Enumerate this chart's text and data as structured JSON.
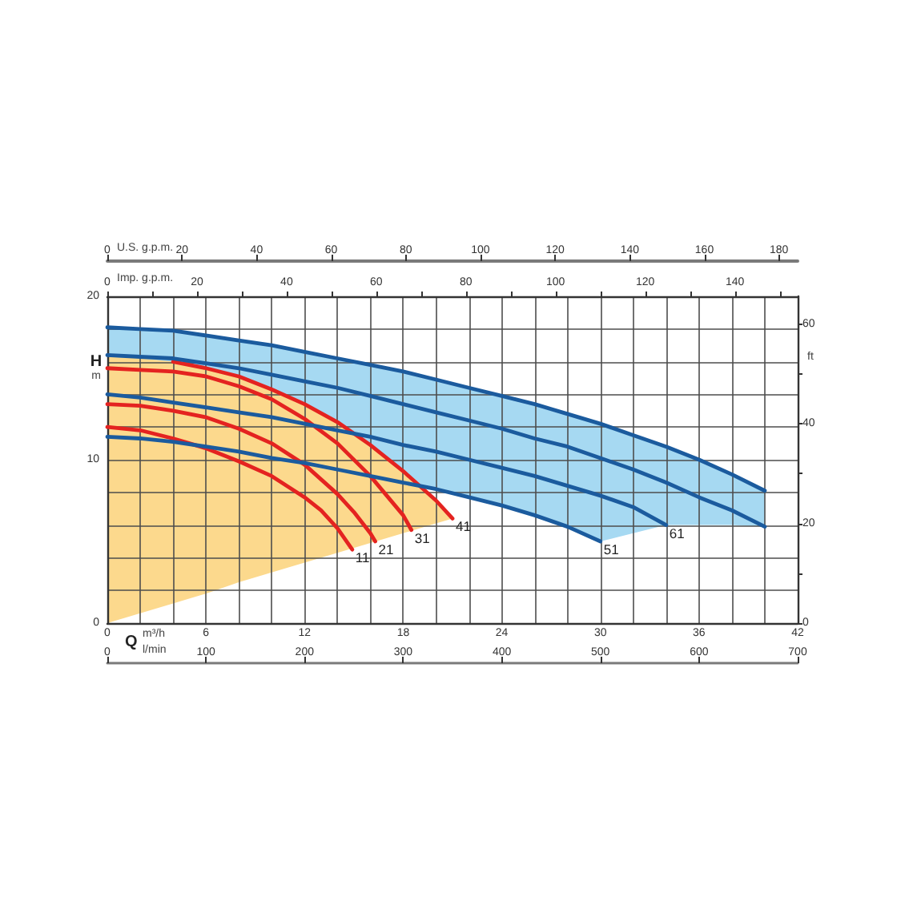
{
  "chart_data": [
    {
      "type": "line",
      "xlabel": "m³/h",
      "x2label": "Imp. g.p.m.",
      "ylabel": "m",
      "annotations": [
        "Q",
        "H"
      ],
      "xlim": [
        0,
        42
      ],
      "xticks": [
        0,
        {
          "value": 2,
          "label": null
        },
        {
          "value": 4,
          "label": null
        },
        6,
        {
          "value": 8,
          "label": null
        },
        {
          "value": 10,
          "label": null
        },
        12,
        {
          "value": 14,
          "label": null
        },
        {
          "value": 16,
          "label": null
        },
        18,
        {
          "value": 20,
          "label": null
        },
        {
          "value": 22,
          "label": null
        },
        24,
        {
          "value": 26,
          "label": null
        },
        {
          "value": 28,
          "label": null
        },
        30,
        {
          "value": 32,
          "label": null
        },
        {
          "value": 34,
          "label": null
        },
        36,
        {
          "value": 38,
          "label": null
        },
        {
          "value": 40,
          "label": null
        },
        42
      ],
      "x2lim": [
        0,
        154
      ],
      "x2ticks": [
        0,
        {
          "value": 10,
          "label": null
        },
        20,
        {
          "value": 30,
          "label": null
        },
        40,
        {
          "value": 50,
          "label": null
        },
        60,
        {
          "value": 70,
          "label": null
        },
        80,
        {
          "value": 90,
          "label": null
        },
        100,
        {
          "value": 110,
          "label": null
        },
        120,
        {
          "value": 130,
          "label": null
        },
        140,
        {
          "value": 150,
          "label": null
        }
      ],
      "ylim": [
        0,
        20
      ],
      "yticks": [
        0,
        {
          "value": 2,
          "label": null
        },
        {
          "value": 4,
          "label": null
        },
        {
          "value": 6,
          "label": null
        },
        {
          "value": 8,
          "label": null
        },
        10,
        {
          "value": 12,
          "label": null
        },
        {
          "value": 14,
          "label": null
        },
        {
          "value": 16,
          "label": null
        },
        {
          "value": 18,
          "label": null
        },
        20
      ],
      "grid": true,
      "series": [
        {
          "name": "11",
          "color": "#e42320",
          "x": [
            0,
            2,
            4,
            6,
            8,
            10,
            12,
            13,
            14,
            14.9
          ],
          "values": [
            12.0,
            11.8,
            11.3,
            10.7,
            9.9,
            9.0,
            7.7,
            6.9,
            5.8,
            4.5
          ]
        },
        {
          "name": "21",
          "color": "#e42320",
          "x": [
            0,
            2,
            4,
            6,
            8,
            10,
            12,
            14,
            15,
            16,
            16.3
          ],
          "values": [
            13.4,
            13.3,
            13.0,
            12.6,
            11.9,
            11.0,
            9.7,
            7.9,
            6.8,
            5.5,
            5.0
          ]
        },
        {
          "name": "31",
          "color": "#e42320",
          "x": [
            0,
            2,
            4,
            6,
            8,
            10,
            12,
            14,
            16,
            18,
            18.5
          ],
          "values": [
            15.6,
            15.5,
            15.4,
            15.1,
            14.5,
            13.7,
            12.5,
            11.0,
            9.0,
            6.6,
            5.7
          ]
        },
        {
          "name": "41",
          "color": "#e42320",
          "x": [
            4,
            6,
            8,
            10,
            12,
            14,
            16,
            18,
            20,
            21
          ],
          "values": [
            16.0,
            15.6,
            15.1,
            14.3,
            13.4,
            12.3,
            10.9,
            9.3,
            7.5,
            6.4
          ]
        },
        {
          "name": "51",
          "color": "#1b5b9e",
          "x": [
            0,
            2,
            4,
            6,
            8,
            10,
            12,
            14,
            16,
            18,
            20,
            22,
            24,
            26,
            28,
            30
          ],
          "values": [
            11.4,
            11.3,
            11.1,
            10.8,
            10.5,
            10.1,
            9.8,
            9.4,
            9.0,
            8.6,
            8.2,
            7.7,
            7.2,
            6.6,
            5.9,
            5.0
          ]
        },
        {
          "name": "61",
          "color": "#1b5b9e",
          "x": [
            0,
            2,
            4,
            6,
            8,
            10,
            12,
            14,
            16,
            18,
            20,
            22,
            24,
            26,
            28,
            30,
            32,
            34
          ],
          "values": [
            14.0,
            13.8,
            13.5,
            13.2,
            12.9,
            12.6,
            12.2,
            11.8,
            11.4,
            10.9,
            10.5,
            10.0,
            9.5,
            9.0,
            8.4,
            7.8,
            7.1,
            6.0
          ]
        },
        {
          "color": "#1b5b9e",
          "x": [
            0,
            2,
            4,
            6,
            8,
            10,
            12,
            14,
            16,
            18,
            20,
            22,
            24,
            26,
            28,
            30,
            32,
            34,
            36,
            38,
            40
          ],
          "values": [
            16.4,
            16.3,
            16.2,
            15.9,
            15.6,
            15.2,
            14.8,
            14.4,
            13.9,
            13.4,
            12.9,
            12.4,
            11.9,
            11.3,
            10.8,
            10.1,
            9.4,
            8.6,
            7.7,
            6.9,
            5.9
          ]
        },
        {
          "color": "#1b5b9e",
          "x": [
            0,
            2,
            4,
            6,
            8,
            10,
            12,
            14,
            16,
            18,
            20,
            22,
            24,
            26,
            28,
            30,
            32,
            34,
            36,
            38,
            40
          ],
          "values": [
            18.1,
            18.0,
            17.9,
            17.6,
            17.3,
            17.0,
            16.6,
            16.2,
            15.8,
            15.4,
            14.9,
            14.4,
            13.9,
            13.4,
            12.8,
            12.2,
            11.5,
            10.8,
            10.0,
            9.1,
            8.1
          ]
        },
        {
          "type": "area",
          "color": "#a6d9f2",
          "x": [
            0,
            2,
            4,
            6,
            8,
            10,
            12,
            14,
            16,
            18,
            20,
            22,
            24,
            26,
            28,
            30,
            32,
            34,
            36,
            38,
            40
          ],
          "values": [
            null,
            null,
            null,
            null,
            null,
            null,
            null,
            null,
            null,
            null,
            null,
            null,
            null,
            null,
            null,
            null,
            null,
            null,
            null,
            null,
            null
          ],
          "upper": [
            18.1,
            18.0,
            17.9,
            17.6,
            17.3,
            17.0,
            16.6,
            16.2,
            15.8,
            15.4,
            14.9,
            14.4,
            13.9,
            13.4,
            12.8,
            12.2,
            11.5,
            10.8,
            10.0,
            9.1,
            8.1
          ],
          "lower": [
            11.4,
            11.3,
            11.1,
            10.8,
            10.5,
            10.1,
            9.8,
            9.4,
            9.0,
            8.6,
            8.2,
            7.7,
            7.2,
            6.6,
            5.9,
            5.0,
            5.5,
            6.0,
            6.0,
            6.0,
            5.9
          ]
        },
        {
          "type": "area",
          "color": "#fcd98d",
          "x": [
            0,
            2,
            4,
            6,
            8,
            10,
            12,
            14,
            16,
            18,
            20,
            21
          ],
          "values": [
            null,
            null,
            null,
            null,
            null,
            null,
            null,
            null,
            null,
            null,
            null,
            null
          ],
          "upper": [
            16.3,
            16.2,
            16.0,
            15.6,
            15.1,
            14.3,
            13.4,
            12.3,
            10.9,
            9.3,
            7.5,
            6.4
          ],
          "lower": [
            0,
            0.6,
            1.2,
            1.8,
            2.5,
            3.1,
            3.7,
            4.3,
            4.9,
            5.5,
            6.1,
            6.4
          ]
        }
      ]
    },
    {
      "type": "line",
      "xlabel": "l/min",
      "x2label": "U.S. g.p.m.",
      "ylabel": "ft",
      "xlim": [
        0,
        700
      ],
      "xticks": [
        0,
        100,
        200,
        300,
        400,
        500,
        600,
        700
      ],
      "x2lim": [
        0,
        185
      ],
      "x2ticks": [
        0,
        20,
        40,
        60,
        80,
        100,
        120,
        140,
        160,
        180
      ],
      "ylim": [
        0,
        65.6
      ],
      "yticks": [
        0,
        {
          "value": 10,
          "label": null
        },
        20,
        {
          "value": 30,
          "label": null
        },
        40,
        {
          "value": 50,
          "label": null
        },
        60
      ]
    }
  ]
}
